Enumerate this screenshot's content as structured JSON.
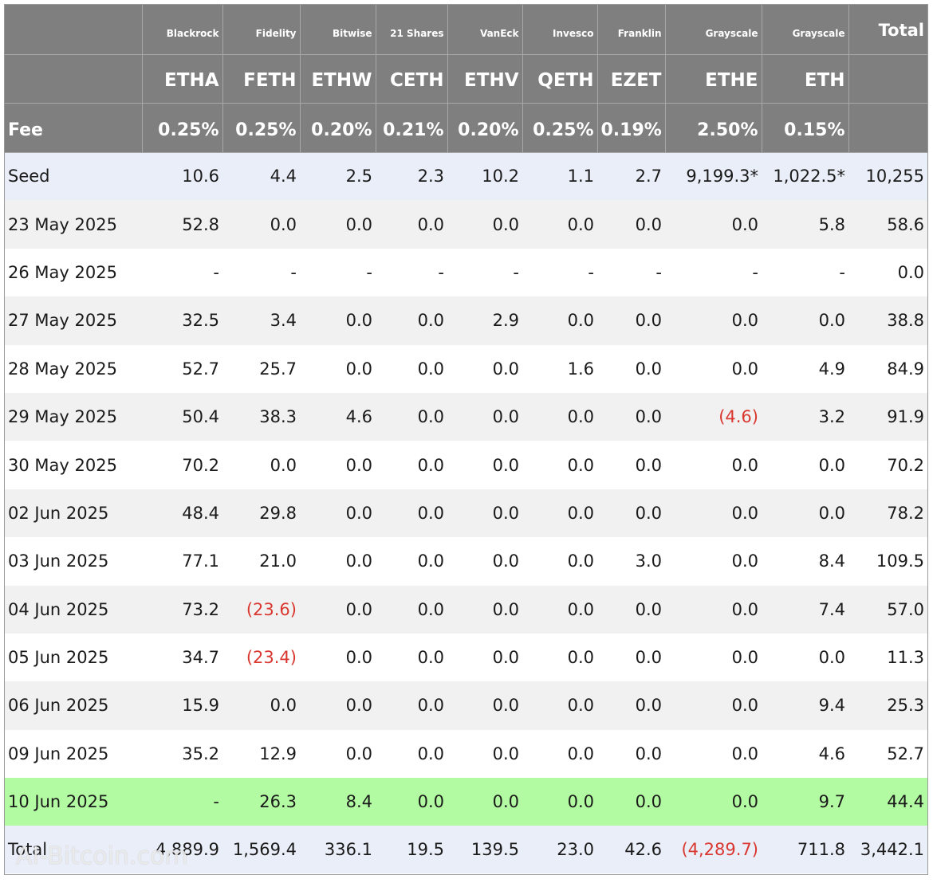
{
  "columns": [
    {
      "issuer": "Blackrock",
      "ticker": "ETHA",
      "fee": "0.25%"
    },
    {
      "issuer": "Fidelity",
      "ticker": "FETH",
      "fee": "0.25%"
    },
    {
      "issuer": "Bitwise",
      "ticker": "ETHW",
      "fee": "0.20%"
    },
    {
      "issuer": "21 Shares",
      "ticker": "CETH",
      "fee": "0.21%"
    },
    {
      "issuer": "VanEck",
      "ticker": "ETHV",
      "fee": "0.20%"
    },
    {
      "issuer": "Invesco",
      "ticker": "QETH",
      "fee": "0.25%"
    },
    {
      "issuer": "Franklin",
      "ticker": "EZET",
      "fee": "0.19%"
    },
    {
      "issuer": "Grayscale",
      "ticker": "ETHE",
      "fee": "2.50%"
    },
    {
      "issuer": "Grayscale",
      "ticker": "ETH",
      "fee": "0.15%"
    }
  ],
  "header": {
    "total_label": "Total",
    "fee_label": "Fee"
  },
  "rows": [
    {
      "label": "Seed",
      "values": [
        "10.6",
        "4.4",
        "2.5",
        "2.3",
        "10.2",
        "1.1",
        "2.7",
        "9,199.3*",
        "1,022.5*"
      ],
      "total": "10,255"
    },
    {
      "label": "23 May 2025",
      "values": [
        "52.8",
        "0.0",
        "0.0",
        "0.0",
        "0.0",
        "0.0",
        "0.0",
        "0.0",
        "5.8"
      ],
      "total": "58.6"
    },
    {
      "label": "26 May 2025",
      "values": [
        "-",
        "-",
        "-",
        "-",
        "-",
        "-",
        "-",
        "-",
        "-"
      ],
      "total": "0.0"
    },
    {
      "label": "27 May 2025",
      "values": [
        "32.5",
        "3.4",
        "0.0",
        "0.0",
        "2.9",
        "0.0",
        "0.0",
        "0.0",
        "0.0"
      ],
      "total": "38.8"
    },
    {
      "label": "28 May 2025",
      "values": [
        "52.7",
        "25.7",
        "0.0",
        "0.0",
        "0.0",
        "1.6",
        "0.0",
        "0.0",
        "4.9"
      ],
      "total": "84.9"
    },
    {
      "label": "29 May 2025",
      "values": [
        "50.4",
        "38.3",
        "4.6",
        "0.0",
        "0.0",
        "0.0",
        "0.0",
        "(4.6)",
        "3.2"
      ],
      "total": "91.9"
    },
    {
      "label": "30 May 2025",
      "values": [
        "70.2",
        "0.0",
        "0.0",
        "0.0",
        "0.0",
        "0.0",
        "0.0",
        "0.0",
        "0.0"
      ],
      "total": "70.2"
    },
    {
      "label": "02 Jun 2025",
      "values": [
        "48.4",
        "29.8",
        "0.0",
        "0.0",
        "0.0",
        "0.0",
        "0.0",
        "0.0",
        "0.0"
      ],
      "total": "78.2"
    },
    {
      "label": "03 Jun 2025",
      "values": [
        "77.1",
        "21.0",
        "0.0",
        "0.0",
        "0.0",
        "0.0",
        "3.0",
        "0.0",
        "8.4"
      ],
      "total": "109.5"
    },
    {
      "label": "04 Jun 2025",
      "values": [
        "73.2",
        "(23.6)",
        "0.0",
        "0.0",
        "0.0",
        "0.0",
        "0.0",
        "0.0",
        "7.4"
      ],
      "total": "57.0"
    },
    {
      "label": "05 Jun 2025",
      "values": [
        "34.7",
        "(23.4)",
        "0.0",
        "0.0",
        "0.0",
        "0.0",
        "0.0",
        "0.0",
        "0.0"
      ],
      "total": "11.3"
    },
    {
      "label": "06 Jun 2025",
      "values": [
        "15.9",
        "0.0",
        "0.0",
        "0.0",
        "0.0",
        "0.0",
        "0.0",
        "0.0",
        "9.4"
      ],
      "total": "25.3"
    },
    {
      "label": "09 Jun 2025",
      "values": [
        "35.2",
        "12.9",
        "0.0",
        "0.0",
        "0.0",
        "0.0",
        "0.0",
        "0.0",
        "4.6"
      ],
      "total": "52.7"
    },
    {
      "label": "10 Jun 2025",
      "values": [
        "-",
        "26.3",
        "8.4",
        "0.0",
        "0.0",
        "0.0",
        "0.0",
        "0.0",
        "9.7"
      ],
      "total": "44.4",
      "highlight": true
    }
  ],
  "totals_row": {
    "label": "Total",
    "values": [
      "4,889.9",
      "1,569.4",
      "336.1",
      "19.5",
      "139.5",
      "23.0",
      "42.6",
      "(4,289.7)",
      "711.8"
    ],
    "total": "3,442.1"
  },
  "watermark": "AI-Bitcoin.com",
  "colors": {
    "header_bg": "#7f7f7f",
    "seed_bg": "#e9eef8",
    "highlight_bg": "#b3fba2",
    "negative": "#d9372f"
  }
}
